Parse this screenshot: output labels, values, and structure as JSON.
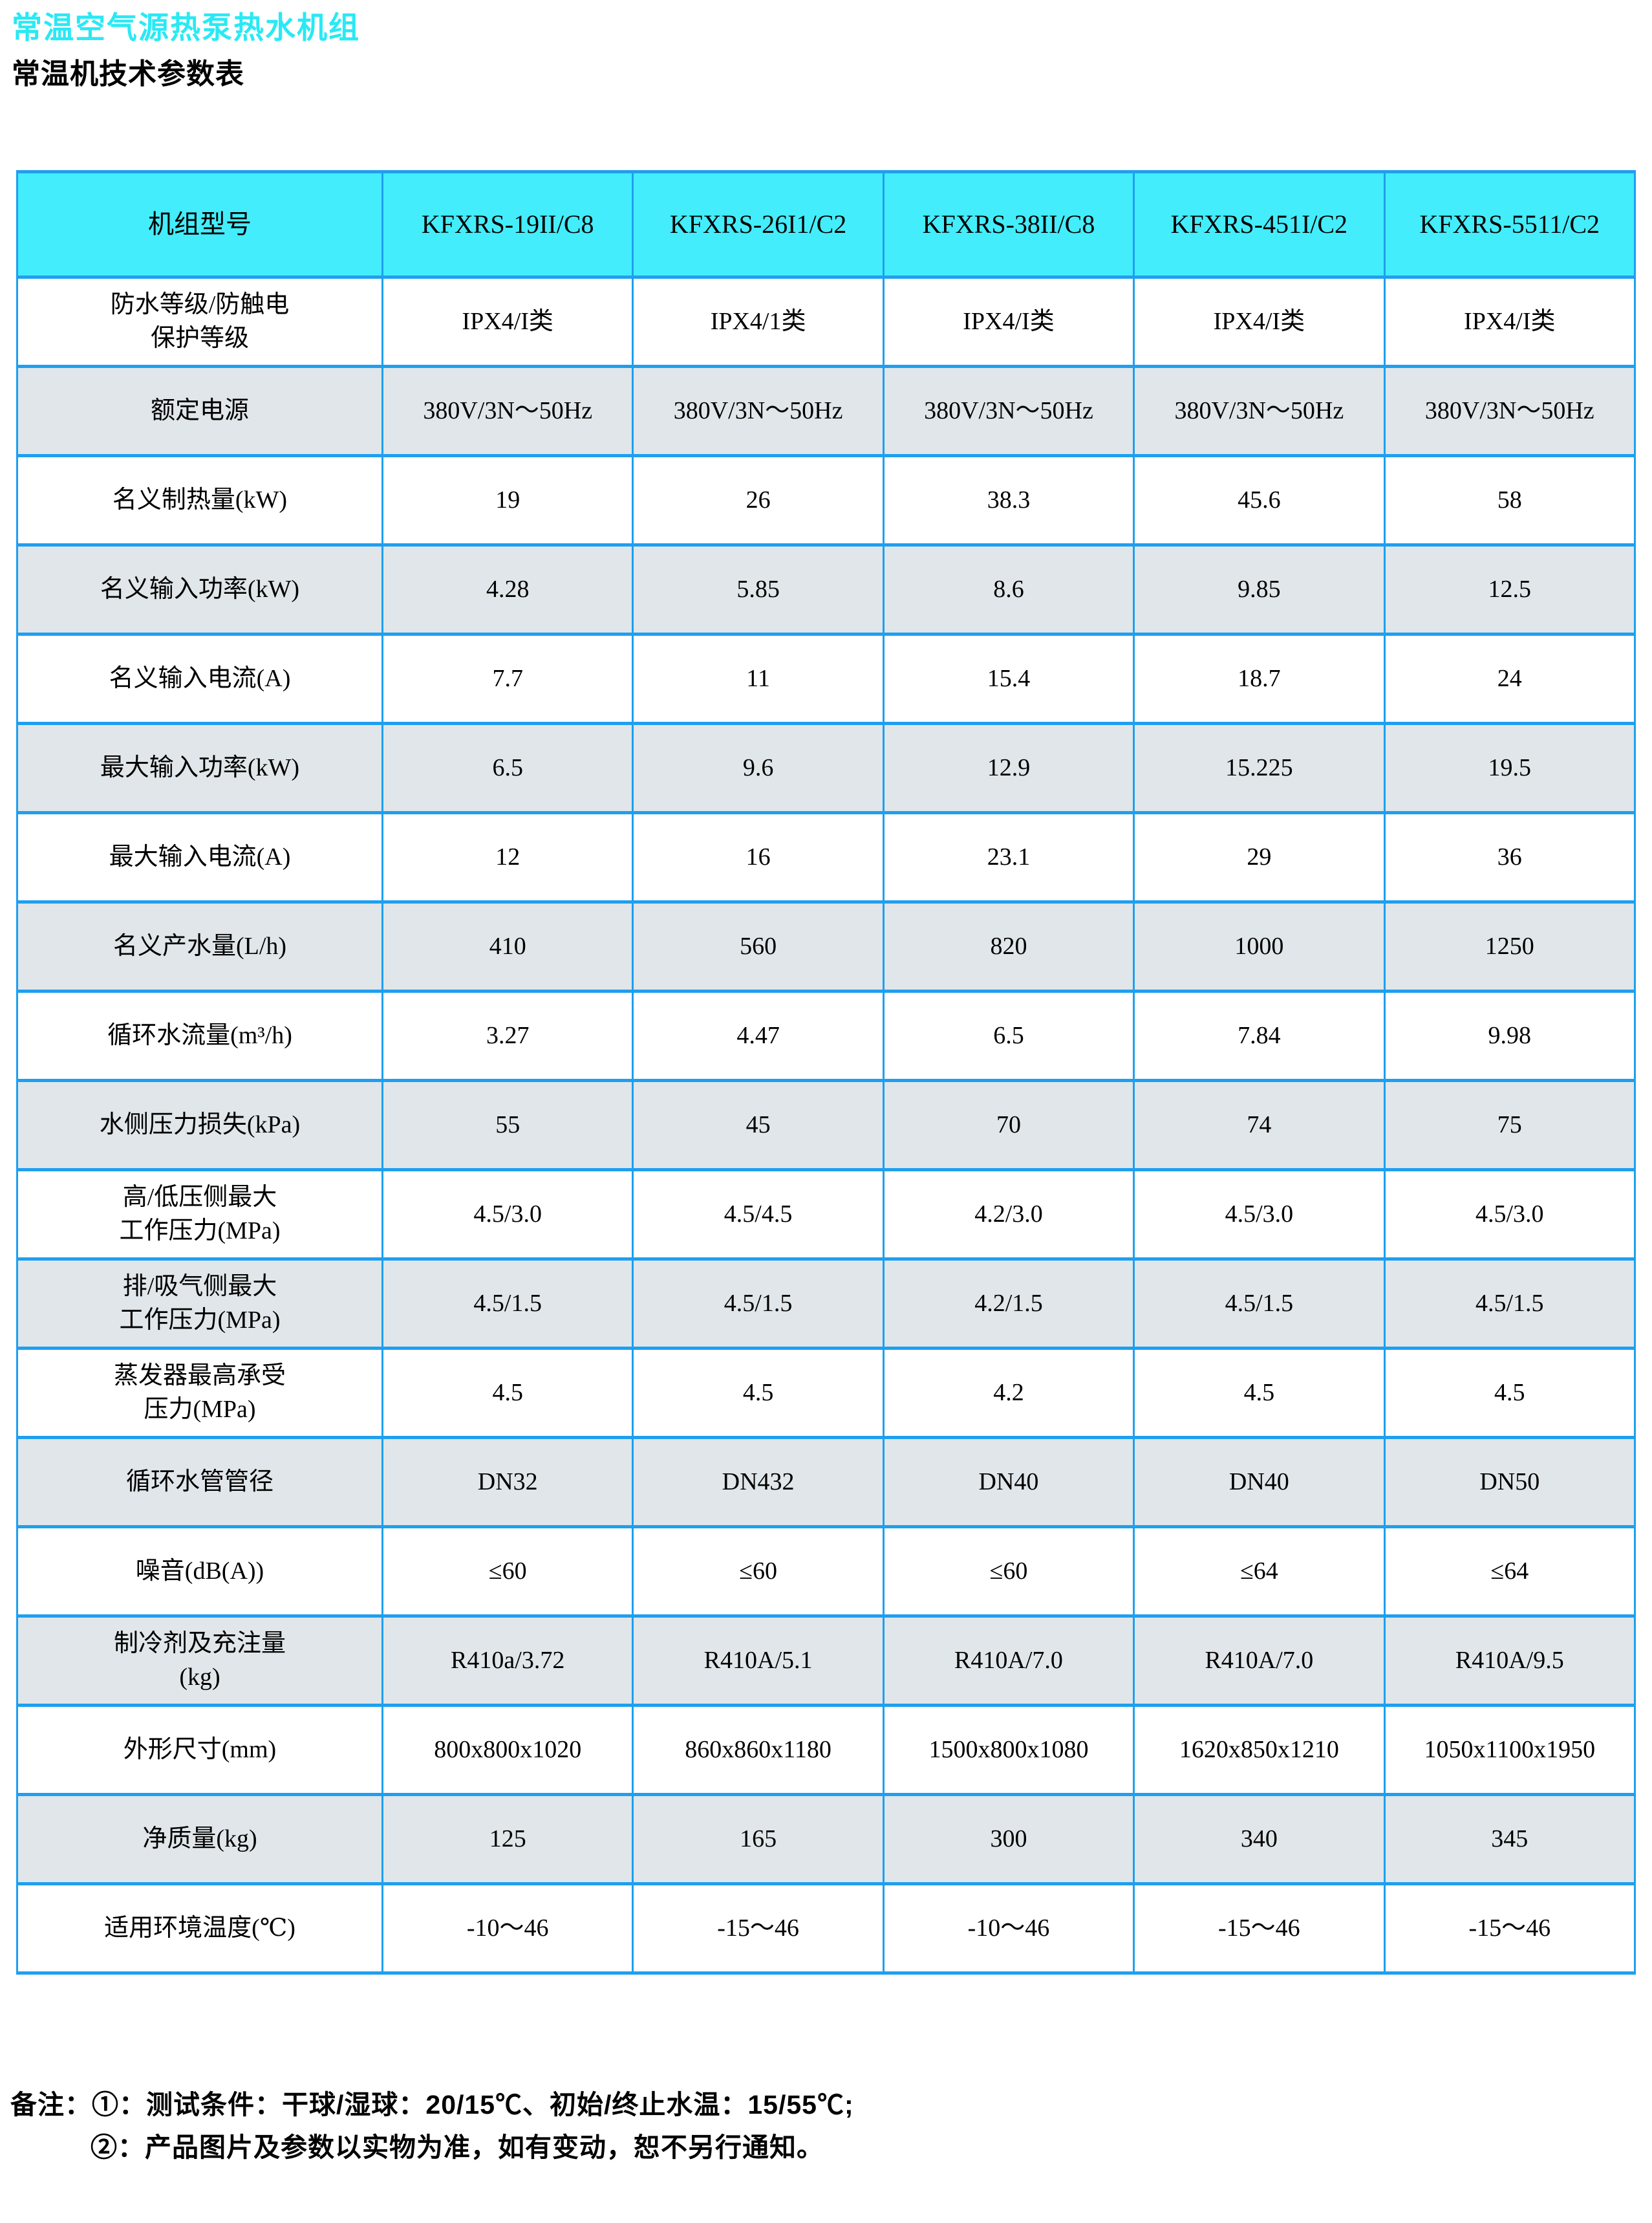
{
  "colors": {
    "title_cyan": "#29E9F4",
    "header_cyan": "#43EDFB",
    "border_blue": "#1E9FF0",
    "row_grey": "#E0E6E9",
    "row_white": "#FFFFFF",
    "text": "#000000"
  },
  "page": {
    "title": "常温空气源热泵热水机组",
    "subtitle": "常温机技术参数表"
  },
  "table": {
    "corner_label": "机组型号",
    "models": [
      "KFXRS-19II/C8",
      "KFXRS-26I1/C2",
      "KFXRS-38II/C8",
      "KFXRS-451I/C2",
      "KFXRS-5511/C2"
    ],
    "rows": [
      {
        "label": "防水等级/防触电\n保护等级",
        "values": [
          "IPX4/I类",
          "IPX4/1类",
          "IPX4/I类",
          "IPX4/I类",
          "IPX4/I类"
        ]
      },
      {
        "label": "额定电源",
        "values": [
          "380V/3N〜50Hz",
          "380V/3N〜50Hz",
          "380V/3N〜50Hz",
          "380V/3N〜50Hz",
          "380V/3N〜50Hz"
        ]
      },
      {
        "label": "名义制热量(kW)",
        "values": [
          "19",
          "26",
          "38.3",
          "45.6",
          "58"
        ]
      },
      {
        "label": "名义输入功率(kW)",
        "values": [
          "4.28",
          "5.85",
          "8.6",
          "9.85",
          "12.5"
        ]
      },
      {
        "label": "名义输入电流(A)",
        "values": [
          "7.7",
          "11",
          "15.4",
          "18.7",
          "24"
        ]
      },
      {
        "label": "最大输入功率(kW)",
        "values": [
          "6.5",
          "9.6",
          "12.9",
          "15.225",
          "19.5"
        ]
      },
      {
        "label": "最大输入电流(A)",
        "values": [
          "12",
          "16",
          "23.1",
          "29",
          "36"
        ]
      },
      {
        "label": "名义产水量(L/h)",
        "values": [
          "410",
          "560",
          "820",
          "1000",
          "1250"
        ]
      },
      {
        "label": "循环水流量(m³/h)",
        "values": [
          "3.27",
          "4.47",
          "6.5",
          "7.84",
          "9.98"
        ]
      },
      {
        "label": "水侧压力损失(kPa)",
        "values": [
          "55",
          "45",
          "70",
          "74",
          "75"
        ]
      },
      {
        "label": "高/低压侧最大\n工作压力(MPa)",
        "values": [
          "4.5/3.0",
          "4.5/4.5",
          "4.2/3.0",
          "4.5/3.0",
          "4.5/3.0"
        ]
      },
      {
        "label": "排/吸气侧最大\n工作压力(MPa)",
        "values": [
          "4.5/1.5",
          "4.5/1.5",
          "4.2/1.5",
          "4.5/1.5",
          "4.5/1.5"
        ]
      },
      {
        "label": "蒸发器最高承受\n压力(MPa)",
        "values": [
          "4.5",
          "4.5",
          "4.2",
          "4.5",
          "4.5"
        ]
      },
      {
        "label": "循环水管管径",
        "values": [
          "DN32",
          "DN432",
          "DN40",
          "DN40",
          "DN50"
        ]
      },
      {
        "label": "噪音(dB(A))",
        "values": [
          "≤60",
          "≤60",
          "≤60",
          "≤64",
          "≤64"
        ]
      },
      {
        "label": "制冷剂及充注量\n(kg)",
        "values": [
          "R410a/3.72",
          "R410A/5.1",
          "R410A/7.0",
          "R410A/7.0",
          "R410A/9.5"
        ]
      },
      {
        "label": "外形尺寸(mm)",
        "values": [
          "800x800x1020",
          "860x860x1180",
          "1500x800x1080",
          "1620x850x1210",
          "1050x1100x1950"
        ]
      },
      {
        "label": "净质量(kg)",
        "values": [
          "125",
          "165",
          "300",
          "340",
          "345"
        ]
      },
      {
        "label": "适用环境温度(℃)",
        "values": [
          "-10〜46",
          "-15〜46",
          "-10〜46",
          "-15〜46",
          "-15〜46"
        ]
      }
    ]
  },
  "notes": {
    "prefix": "备注：",
    "items": [
      "①：测试条件：干球/湿球：20/15℃、初始/终止水温：15/55℃;",
      "②：产品图片及参数以实物为准，如有变动，恕不另行通知。"
    ]
  }
}
